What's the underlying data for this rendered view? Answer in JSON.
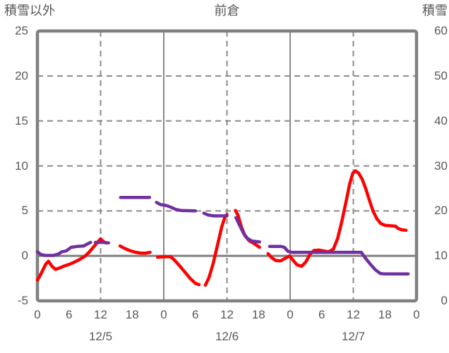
{
  "header": {
    "left_axis_title": "積雪以外",
    "chart_title": "前倉",
    "right_axis_title": "積雪"
  },
  "chart_data": {
    "type": "line",
    "title": "前倉",
    "left_axis": {
      "title": "積雪以外",
      "min": -5,
      "max": 25,
      "tick_values": [
        25,
        20,
        15,
        10,
        5,
        0,
        -5
      ],
      "tick_labels": [
        "25",
        "20",
        "15",
        "10",
        "5",
        "0",
        "-5"
      ]
    },
    "right_axis": {
      "title": "積雪",
      "min": 0,
      "max": 60,
      "tick_values": [
        60,
        50,
        40,
        30,
        20,
        10,
        0
      ],
      "tick_labels": [
        "60",
        "50",
        "40",
        "30",
        "20",
        "10",
        "0"
      ]
    },
    "x_axis": {
      "unit": "hours, 12/5 00:00 - 12/8 00:00",
      "min": 0,
      "max": 72,
      "ticks": [
        {
          "hour": 0,
          "label": "0"
        },
        {
          "hour": 6,
          "label": "6"
        },
        {
          "hour": 12,
          "label": "12"
        },
        {
          "hour": 18,
          "label": "18"
        },
        {
          "hour": 24,
          "label": "0"
        },
        {
          "hour": 30,
          "label": "6"
        },
        {
          "hour": 36,
          "label": "12"
        },
        {
          "hour": 42,
          "label": "18"
        },
        {
          "hour": 48,
          "label": "0"
        },
        {
          "hour": 54,
          "label": "6"
        },
        {
          "hour": 60,
          "label": "12"
        },
        {
          "hour": 66,
          "label": "18"
        },
        {
          "hour": 72,
          "label": "0"
        }
      ],
      "date_labels": [
        {
          "hour": 12,
          "label": "12/5"
        },
        {
          "hour": 36,
          "label": "12/6"
        },
        {
          "hour": 60,
          "label": "12/7"
        }
      ]
    },
    "gridlines": {
      "h_dashed_values": [
        20,
        15,
        10,
        5
      ],
      "v_dashed_hours": [
        12,
        36,
        60
      ],
      "v_solid_hours": [
        24,
        48
      ],
      "zero_line_value": 0,
      "legend": "none"
    },
    "colors": {
      "red_series": "#ff0000",
      "purple_series": "#7030a0",
      "grid": "#8a8a8a",
      "border": "#808080",
      "text": "#595959"
    },
    "series": [
      {
        "id": "other-than-snow-red",
        "axis": "left",
        "color": "#ff0000",
        "segments": [
          [
            [
              0,
              -2.7
            ],
            [
              0.5,
              -2.2
            ],
            [
              1,
              -1.6
            ],
            [
              1.6,
              -0.9
            ],
            [
              2.1,
              -0.6
            ],
            [
              2.7,
              -1.1
            ],
            [
              3.4,
              -1.5
            ],
            [
              4.2,
              -1.35
            ],
            [
              5,
              -1.15
            ],
            [
              6,
              -0.95
            ],
            [
              7,
              -0.7
            ],
            [
              8,
              -0.4
            ],
            [
              9,
              -0.05
            ],
            [
              9.8,
              0.4
            ],
            [
              10.6,
              0.95
            ],
            [
              11.4,
              1.5
            ],
            [
              12,
              1.9
            ],
            [
              12.5,
              1.6
            ],
            [
              13,
              1.45
            ]
          ],
          [
            [
              15.7,
              1.1
            ],
            [
              16.5,
              0.85
            ],
            [
              17.5,
              0.6
            ],
            [
              18.5,
              0.42
            ],
            [
              19.5,
              0.32
            ],
            [
              20.5,
              0.3
            ],
            [
              21.4,
              0.4
            ]
          ],
          [
            [
              22.8,
              -0.15
            ],
            [
              24,
              -0.1
            ],
            [
              25.3,
              -0.1
            ],
            [
              26,
              -0.45
            ],
            [
              27,
              -1.1
            ],
            [
              28,
              -1.8
            ],
            [
              29,
              -2.5
            ],
            [
              30,
              -3.05
            ],
            [
              30.7,
              -3.2
            ]
          ],
          [
            [
              31.9,
              -3.25
            ],
            [
              32.6,
              -2.4
            ],
            [
              33.4,
              -0.8
            ],
            [
              34.2,
              1.2
            ],
            [
              35,
              3.2
            ],
            [
              35.6,
              4.3
            ],
            [
              36,
              4.6
            ]
          ],
          [
            [
              37.6,
              5.05
            ],
            [
              38.1,
              4.5
            ],
            [
              38.7,
              3.3
            ],
            [
              39.4,
              2.25
            ],
            [
              40.2,
              1.7
            ],
            [
              41.2,
              1.35
            ],
            [
              42.2,
              0.95
            ]
          ],
          [
            [
              43.8,
              0.25
            ],
            [
              44.4,
              -0.15
            ],
            [
              45.2,
              -0.5
            ],
            [
              46.2,
              -0.55
            ],
            [
              47.1,
              -0.25
            ],
            [
              47.9,
              0.0
            ],
            [
              48.5,
              -0.45
            ],
            [
              49.3,
              -1.0
            ],
            [
              50.2,
              -1.15
            ],
            [
              51,
              -0.65
            ],
            [
              51.8,
              0.2
            ],
            [
              52.5,
              0.6
            ],
            [
              53.5,
              0.65
            ],
            [
              54.3,
              0.55
            ],
            [
              55.3,
              0.45
            ],
            [
              56.2,
              0.75
            ],
            [
              57,
              1.9
            ],
            [
              57.8,
              3.8
            ],
            [
              58.6,
              6.0
            ],
            [
              59.3,
              8.0
            ],
            [
              59.9,
              9.2
            ],
            [
              60.4,
              9.45
            ],
            [
              61,
              9.2
            ],
            [
              61.7,
              8.5
            ],
            [
              62.4,
              7.4
            ],
            [
              63.1,
              6.1
            ],
            [
              63.8,
              4.9
            ],
            [
              64.5,
              4.1
            ],
            [
              65.2,
              3.6
            ],
            [
              66,
              3.4
            ],
            [
              67,
              3.35
            ],
            [
              68,
              3.3
            ],
            [
              68.5,
              3.05
            ],
            [
              69.2,
              2.9
            ],
            [
              70,
              2.85
            ]
          ]
        ]
      },
      {
        "id": "snow-depth-purple",
        "axis": "right",
        "color": "#7030a0",
        "segments": [
          [
            [
              0,
              10.9
            ],
            [
              0.7,
              10.3
            ],
            [
              1.5,
              10.1
            ],
            [
              3,
              10.1
            ],
            [
              4,
              10.4
            ],
            [
              4.6,
              10.9
            ],
            [
              5.5,
              11.1
            ],
            [
              6.4,
              11.9
            ],
            [
              7.5,
              12.1
            ],
            [
              8.8,
              12.2
            ],
            [
              9.4,
              12.6
            ],
            [
              10.1,
              13.0
            ]
          ],
          [
            [
              11,
              13.0
            ],
            [
              12.4,
              13.0
            ],
            [
              13.5,
              12.9
            ]
          ],
          [
            [
              15.8,
              23
            ],
            [
              18,
              23
            ],
            [
              21.3,
              23
            ]
          ],
          [
            [
              22.6,
              21.9
            ],
            [
              23.4,
              21.4
            ],
            [
              24.5,
              21.2
            ],
            [
              25.4,
              20.8
            ],
            [
              26.3,
              20.3
            ],
            [
              27.3,
              20.1
            ],
            [
              30,
              20.0
            ]
          ],
          [
            [
              31.6,
              19.5
            ],
            [
              32.4,
              19.1
            ],
            [
              33.5,
              18.9
            ],
            [
              36,
              18.9
            ]
          ],
          [
            [
              37.7,
              18.5
            ],
            [
              38.4,
              16.8
            ],
            [
              39.2,
              14.9
            ],
            [
              39.9,
              13.9
            ],
            [
              40.7,
              13.3
            ],
            [
              42.2,
              13.1
            ]
          ],
          [
            [
              44.1,
              12.1
            ],
            [
              46.3,
              12.1
            ],
            [
              46.9,
              11.9
            ],
            [
              47.6,
              11.0
            ],
            [
              48.3,
              10.8
            ],
            [
              56,
              10.8
            ],
            [
              61.5,
              10.8
            ],
            [
              62.3,
              9.5
            ],
            [
              63.2,
              8.2
            ],
            [
              64.2,
              6.9
            ],
            [
              65.1,
              6.1
            ],
            [
              65.8,
              6.0
            ],
            [
              70.4,
              6.0
            ]
          ]
        ]
      }
    ]
  }
}
